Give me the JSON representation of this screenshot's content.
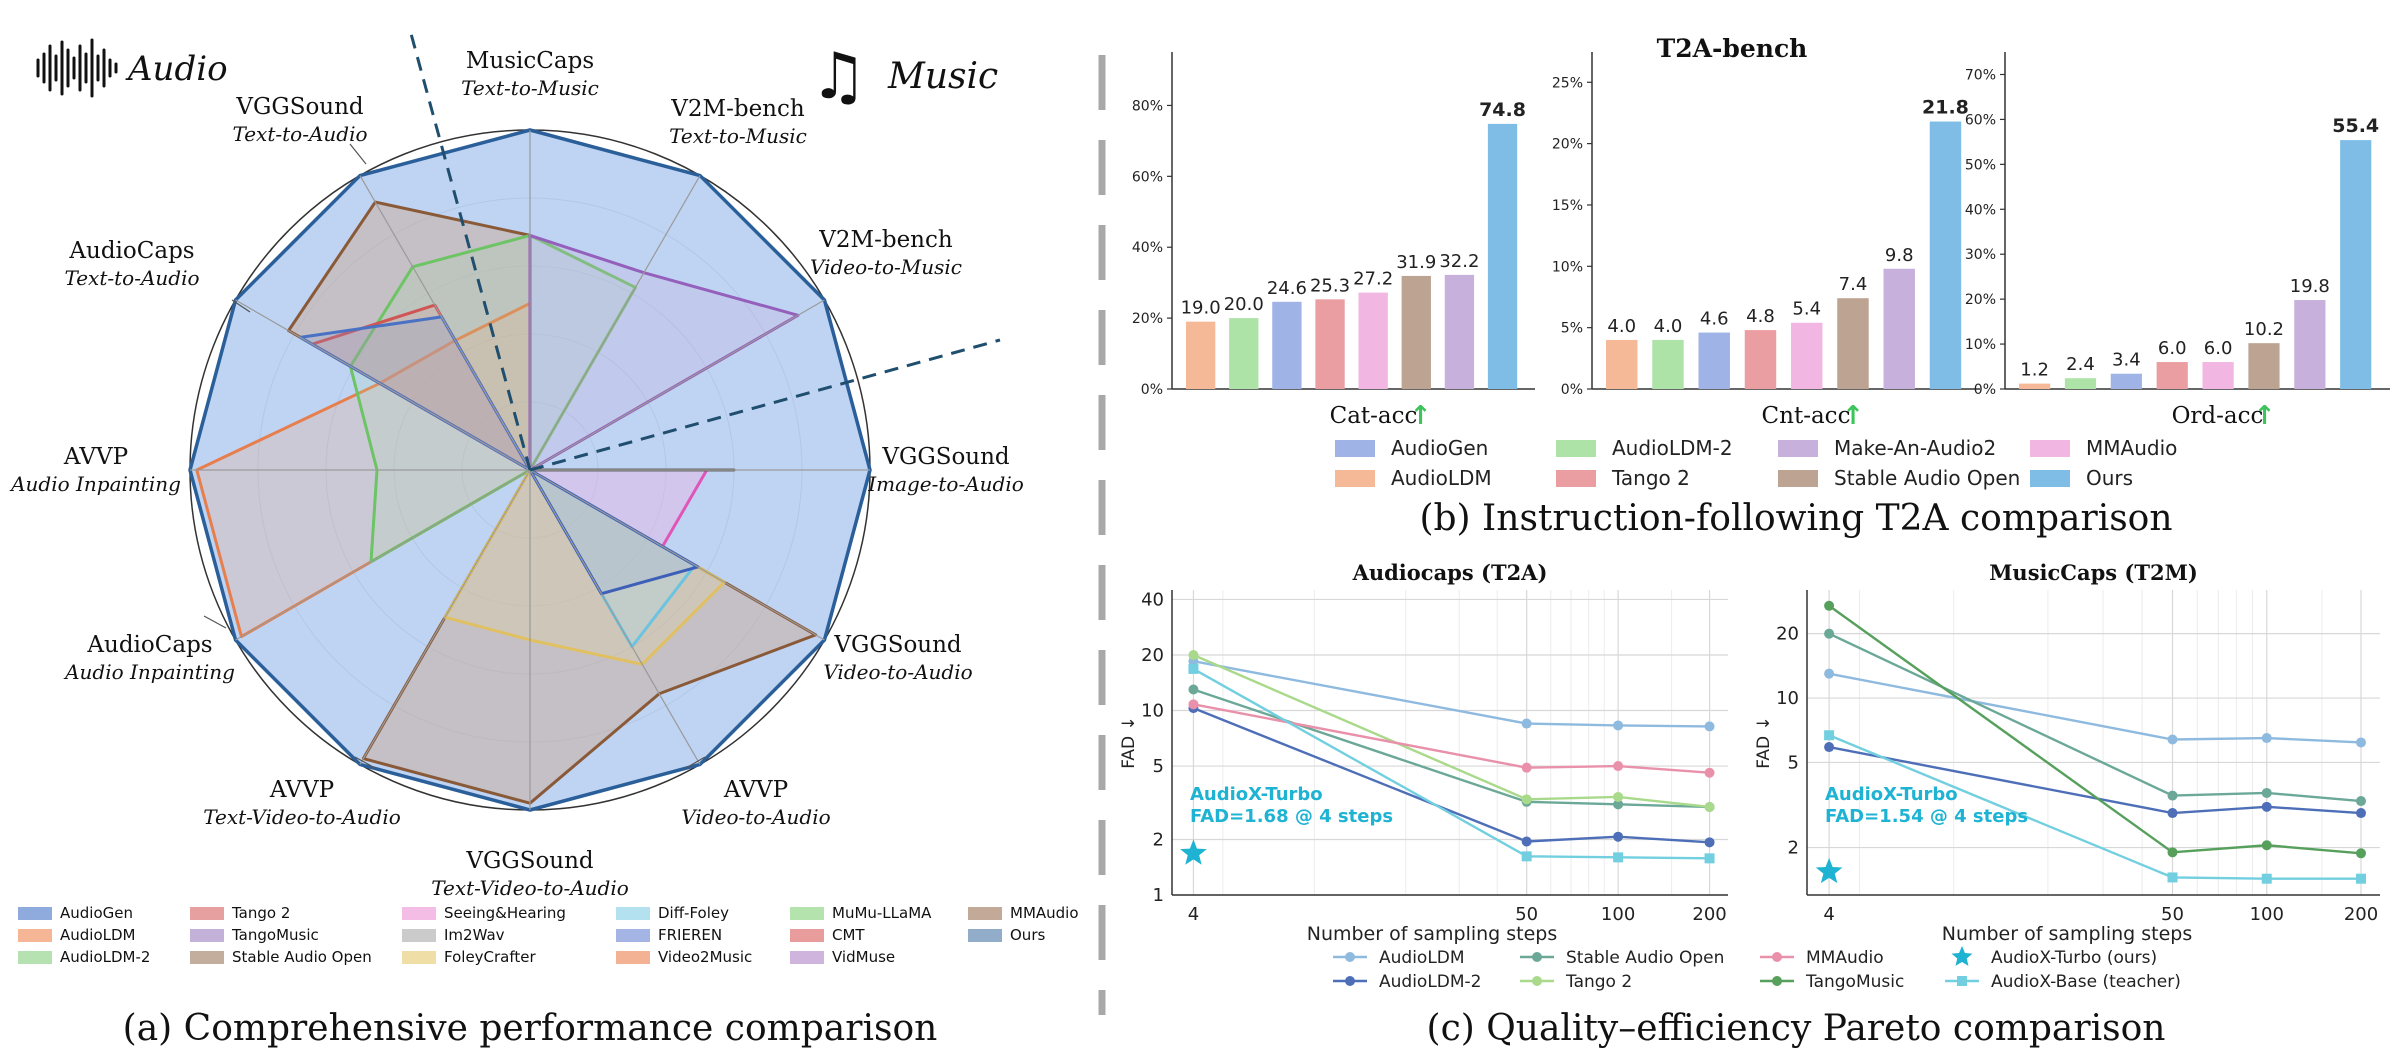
{
  "radar": {
    "header_audio": "Audio",
    "header_music": "Music",
    "caption": "(a) Comprehensive performance comparison",
    "axes": [
      {
        "name": "MusicCaps",
        "task": "Text-to-Music"
      },
      {
        "name": "V2M-bench",
        "task": "Text-to-Music"
      },
      {
        "name": "V2M-bench",
        "task": "Video-to-Music"
      },
      {
        "name": "VGGSound",
        "task": "Image-to-Audio"
      },
      {
        "name": "VGGSound",
        "task": "Video-to-Audio"
      },
      {
        "name": "AVVP",
        "task": "Video-to-Audio"
      },
      {
        "name": "VGGSound",
        "task": "Text-Video-to-Audio"
      },
      {
        "name": "AVVP",
        "task": "Text-Video-to-Audio"
      },
      {
        "name": "AudioCaps",
        "task": "Audio Inpainting"
      },
      {
        "name": "AVVP",
        "task": "Audio Inpainting"
      },
      {
        "name": "AudioCaps",
        "task": "Text-to-Audio"
      },
      {
        "name": "VGGSound",
        "task": "Text-to-Audio"
      }
    ],
    "legend": [
      {
        "name": "AudioGen",
        "color": "#7b9bd6"
      },
      {
        "name": "AudioLDM",
        "color": "#f3a983"
      },
      {
        "name": "AudioLDM-2",
        "color": "#a9dda3"
      },
      {
        "name": "Tango 2",
        "color": "#e38f8f"
      },
      {
        "name": "TangoMusic",
        "color": "#b9a3d2"
      },
      {
        "name": "Stable Audio Open",
        "color": "#b9a08c"
      },
      {
        "name": "Seeing&Hearing",
        "color": "#f2b2e0"
      },
      {
        "name": "Im2Wav",
        "color": "#c2c2c2"
      },
      {
        "name": "FoleyCrafter",
        "color": "#ecd996"
      },
      {
        "name": "Diff-Foley",
        "color": "#a7dced"
      },
      {
        "name": "FRIEREN",
        "color": "#94a8e0"
      },
      {
        "name": "Video2Music",
        "color": "#f2a482"
      },
      {
        "name": "MuMu-LLaMA",
        "color": "#a8dea0"
      },
      {
        "name": "CMT",
        "color": "#e48b8b"
      },
      {
        "name": "VidMuse",
        "color": "#c7a8d8"
      },
      {
        "name": "MMAudio",
        "color": "#b99a86"
      },
      {
        "name": "Ours",
        "color": "#7e9fbf"
      }
    ],
    "polygons": [
      {
        "name": "Ours",
        "fill": "#a6c3ee",
        "stroke": "#2b5f9a",
        "opacity": 0.72,
        "values": [
          1,
          1,
          1,
          1,
          1,
          1,
          1,
          1,
          1,
          1,
          1,
          1
        ]
      },
      {
        "name": "MMAudio",
        "fill": "#c9a88f",
        "stroke": "#8a5a38",
        "opacity": 0.45,
        "values": [
          0.69,
          0.0,
          0.0,
          0.0,
          0.97,
          0.76,
          0.98,
          0.98,
          0.0,
          0.0,
          0.82,
          0.91
        ]
      },
      {
        "name": "AudioLDM",
        "fill": "#f3a983",
        "stroke": "#e67f4d",
        "opacity": 0.25,
        "values": [
          0.49,
          0.0,
          0.0,
          0.0,
          0.0,
          0.0,
          0.0,
          0.0,
          0.98,
          0.98,
          0.51,
          0.44
        ]
      },
      {
        "name": "AudioLDM-2",
        "fill": "#a9dda3",
        "stroke": "#6cc464",
        "opacity": 0.2,
        "values": [
          0.69,
          0.62,
          0.0,
          0.0,
          0.0,
          0.0,
          0.0,
          0.0,
          0.54,
          0.45,
          0.61,
          0.69
        ]
      },
      {
        "name": "TangoMusic",
        "fill": "#c7a8d8",
        "stroke": "#9460bb",
        "opacity": 0.25,
        "values": [
          0.69,
          0.67,
          0.91,
          0.0,
          0.0,
          0.0,
          0.0,
          0.0,
          0.0,
          0.0,
          0.0,
          0.0
        ]
      },
      {
        "name": "Tango 2",
        "fill": "#e38f8f",
        "stroke": "#d05555",
        "opacity": 0.2,
        "values": [
          0.0,
          0.0,
          0.0,
          0.0,
          0.0,
          0.0,
          0.0,
          0.0,
          0.0,
          0.0,
          0.74,
          0.56
        ]
      },
      {
        "name": "AudioGen",
        "fill": "#7b9bd6",
        "stroke": "#4a72c4",
        "opacity": 0.2,
        "values": [
          0.0,
          0.0,
          0.0,
          0.0,
          0.0,
          0.0,
          0.0,
          0.0,
          0.0,
          0.0,
          0.78,
          0.52
        ]
      },
      {
        "name": "Seeing&Hearing",
        "fill": "#f2b2e0",
        "stroke": "#e055b8",
        "opacity": 0.4,
        "values": [
          0.0,
          0.0,
          0.0,
          0.52,
          0.45,
          0.0,
          0.0,
          0.0,
          0.0,
          0.0,
          0.0,
          0.0
        ]
      },
      {
        "name": "Im2Wav",
        "fill": "#c2c2c2",
        "stroke": "#666666",
        "opacity": 0.2,
        "values": [
          0.0,
          0.0,
          0.0,
          0.6,
          0.0,
          0.0,
          0.0,
          0.0,
          0.0,
          0.0,
          0.0,
          0.0
        ]
      },
      {
        "name": "FoleyCrafter",
        "fill": "#ecd996",
        "stroke": "#e0c060",
        "opacity": 0.25,
        "values": [
          0.0,
          0.0,
          0.0,
          0.0,
          0.66,
          0.66,
          0.5,
          0.5,
          0.0,
          0.0,
          0.0,
          0.0
        ]
      },
      {
        "name": "Diff-Foley",
        "fill": "#a7dced",
        "stroke": "#6cc4e0",
        "opacity": 0.3,
        "values": [
          0.0,
          0.0,
          0.0,
          0.0,
          0.56,
          0.6,
          0.0,
          0.0,
          0.0,
          0.0,
          0.0,
          0.0
        ]
      },
      {
        "name": "FRIEREN",
        "fill": "#94a8e0",
        "stroke": "#3d5fb8",
        "opacity": 0.2,
        "values": [
          0.0,
          0.0,
          0.0,
          0.0,
          0.57,
          0.42,
          0.0,
          0.0,
          0.0,
          0.0,
          0.0,
          0.0
        ]
      }
    ]
  },
  "bars": {
    "title": "T2A-bench",
    "caption": "(b) Instruction-following T2A comparison",
    "arrow": "↑",
    "models": [
      "AudioLDM",
      "AudioLDM-2",
      "AudioGen",
      "Tango 2",
      "MMAudio",
      "Stable Audio Open",
      "Make-An-Audio2",
      "Ours"
    ],
    "colors": [
      "#f5b998",
      "#aee3a8",
      "#9fb3e6",
      "#ea9ea1",
      "#f2b6e2",
      "#bca392",
      "#c7b0dc",
      "#80bde6"
    ],
    "legend": [
      {
        "name": "AudioGen",
        "color": "#9fb3e6"
      },
      {
        "name": "AudioLDM-2",
        "color": "#aee3a8"
      },
      {
        "name": "Make-An-Audio2",
        "color": "#c7b0dc"
      },
      {
        "name": "MMAudio",
        "color": "#f2b6e2"
      },
      {
        "name": "AudioLDM",
        "color": "#f5b998"
      },
      {
        "name": "Tango 2",
        "color": "#ea9ea1"
      },
      {
        "name": "Stable Audio Open",
        "color": "#bca392"
      },
      {
        "name": "Ours",
        "color": "#80bde6"
      }
    ],
    "panels": [
      {
        "metric": "Cat-acc",
        "ymax": 90,
        "ticks": [
          0,
          20,
          40,
          60,
          80
        ],
        "values": [
          19.0,
          20.0,
          24.6,
          25.3,
          27.2,
          31.9,
          32.2,
          74.8
        ],
        "labels": [
          "19.0",
          "20.0",
          "24.6",
          "25.3",
          "27.2",
          "31.9",
          "32.2",
          "74.8"
        ]
      },
      {
        "metric": "Cnt-acc",
        "ymax": 26,
        "ticks": [
          0,
          5,
          10,
          15,
          20,
          25
        ],
        "values": [
          4.0,
          4.0,
          4.6,
          4.8,
          5.4,
          7.4,
          9.8,
          21.8
        ],
        "labels": [
          "4.0",
          "4.0",
          "4.6",
          "4.8",
          "5.4",
          "7.4",
          "9.8",
          "21.8"
        ]
      },
      {
        "metric": "Ord-acc",
        "ymax": 71,
        "ticks": [
          0,
          10,
          20,
          30,
          40,
          50,
          60,
          70
        ],
        "values": [
          1.2,
          2.4,
          3.4,
          6.0,
          6.0,
          10.2,
          19.8,
          55.4
        ],
        "labels": [
          "1.2",
          "2.4",
          "3.4",
          "6.0",
          "6.0",
          "10.2",
          "19.8",
          "55.4"
        ]
      }
    ]
  },
  "pareto": {
    "caption": "(c) Quality–efficiency Pareto comparison",
    "xlabel": "Number of sampling steps",
    "ylabel": "FAD ↓",
    "xticks": [
      4,
      50,
      100,
      200
    ],
    "legend": [
      {
        "name": "AudioLDM",
        "color": "#8fbadf",
        "marker": "circle"
      },
      {
        "name": "Stable Audio Open",
        "color": "#6ba897",
        "marker": "circle"
      },
      {
        "name": "MMAudio",
        "color": "#e991aa",
        "marker": "circle"
      },
      {
        "name": "AudioX-Turbo (ours)",
        "color": "#1fb3d3",
        "marker": "star"
      },
      {
        "name": "AudioLDM-2",
        "color": "#4e6fb8",
        "marker": "circle"
      },
      {
        "name": "Tango 2",
        "color": "#a9d98a",
        "marker": "circle"
      },
      {
        "name": "TangoMusic",
        "color": "#56a05c",
        "marker": "circle"
      },
      {
        "name": "AudioX-Base (teacher)",
        "color": "#72cfe0",
        "marker": "square"
      }
    ],
    "panels": [
      {
        "title": "Audiocaps (T2A)",
        "yticks": [
          1,
          2,
          5,
          10,
          20,
          40
        ],
        "ylim": [
          1,
          45
        ],
        "annotation": [
          "AudioX-Turbo",
          "FAD=1.68 @ 4 steps"
        ],
        "star": {
          "x": 4,
          "y": 1.68
        },
        "series": [
          {
            "name": "AudioLDM",
            "color": "#8fbadf",
            "marker": "circle",
            "points": [
              [
                4,
                18.5
              ],
              [
                50,
                8.5
              ],
              [
                100,
                8.3
              ],
              [
                200,
                8.2
              ]
            ]
          },
          {
            "name": "AudioLDM-2",
            "color": "#4e6fb8",
            "marker": "circle",
            "points": [
              [
                4,
                10.3
              ],
              [
                50,
                1.95
              ],
              [
                100,
                2.07
              ],
              [
                200,
                1.93
              ]
            ]
          },
          {
            "name": "Stable Audio Open",
            "color": "#6ba897",
            "marker": "circle",
            "points": [
              [
                4,
                13
              ],
              [
                50,
                3.2
              ],
              [
                100,
                3.1
              ],
              [
                200,
                3.0
              ]
            ]
          },
          {
            "name": "Tango 2",
            "color": "#a9d98a",
            "marker": "circle",
            "points": [
              [
                4,
                20
              ],
              [
                50,
                3.3
              ],
              [
                100,
                3.4
              ],
              [
                200,
                3.0
              ]
            ]
          },
          {
            "name": "MMAudio",
            "color": "#e991aa",
            "marker": "circle",
            "points": [
              [
                4,
                10.8
              ],
              [
                50,
                4.9
              ],
              [
                100,
                5.0
              ],
              [
                200,
                4.6
              ]
            ]
          },
          {
            "name": "AudioX-Base (teacher)",
            "color": "#72cfe0",
            "marker": "square",
            "points": [
              [
                4,
                16.8
              ],
              [
                50,
                1.62
              ],
              [
                100,
                1.6
              ],
              [
                200,
                1.58
              ]
            ]
          }
        ]
      },
      {
        "title": "MusicCaps (T2M)",
        "yticks": [
          2,
          5,
          10,
          20
        ],
        "ylim": [
          1.2,
          32
        ],
        "annotation": [
          "AudioX-Turbo",
          "FAD=1.54 @ 4 steps"
        ],
        "star": {
          "x": 4,
          "y": 1.54
        },
        "series": [
          {
            "name": "AudioLDM",
            "color": "#8fbadf",
            "marker": "circle",
            "points": [
              [
                4,
                13
              ],
              [
                50,
                6.4
              ],
              [
                100,
                6.5
              ],
              [
                200,
                6.2
              ]
            ]
          },
          {
            "name": "AudioLDM-2",
            "color": "#4e6fb8",
            "marker": "circle",
            "points": [
              [
                4,
                5.9
              ],
              [
                50,
                2.9
              ],
              [
                100,
                3.1
              ],
              [
                200,
                2.9
              ]
            ]
          },
          {
            "name": "Stable Audio Open",
            "color": "#6ba897",
            "marker": "circle",
            "points": [
              [
                4,
                20
              ],
              [
                50,
                3.5
              ],
              [
                100,
                3.6
              ],
              [
                200,
                3.3
              ]
            ]
          },
          {
            "name": "TangoMusic",
            "color": "#56a05c",
            "marker": "circle",
            "points": [
              [
                4,
                27
              ],
              [
                50,
                1.9
              ],
              [
                100,
                2.05
              ],
              [
                200,
                1.88
              ]
            ]
          },
          {
            "name": "AudioX-Base (teacher)",
            "color": "#72cfe0",
            "marker": "square",
            "points": [
              [
                4,
                6.7
              ],
              [
                50,
                1.45
              ],
              [
                100,
                1.43
              ],
              [
                200,
                1.43
              ]
            ]
          }
        ]
      }
    ]
  }
}
